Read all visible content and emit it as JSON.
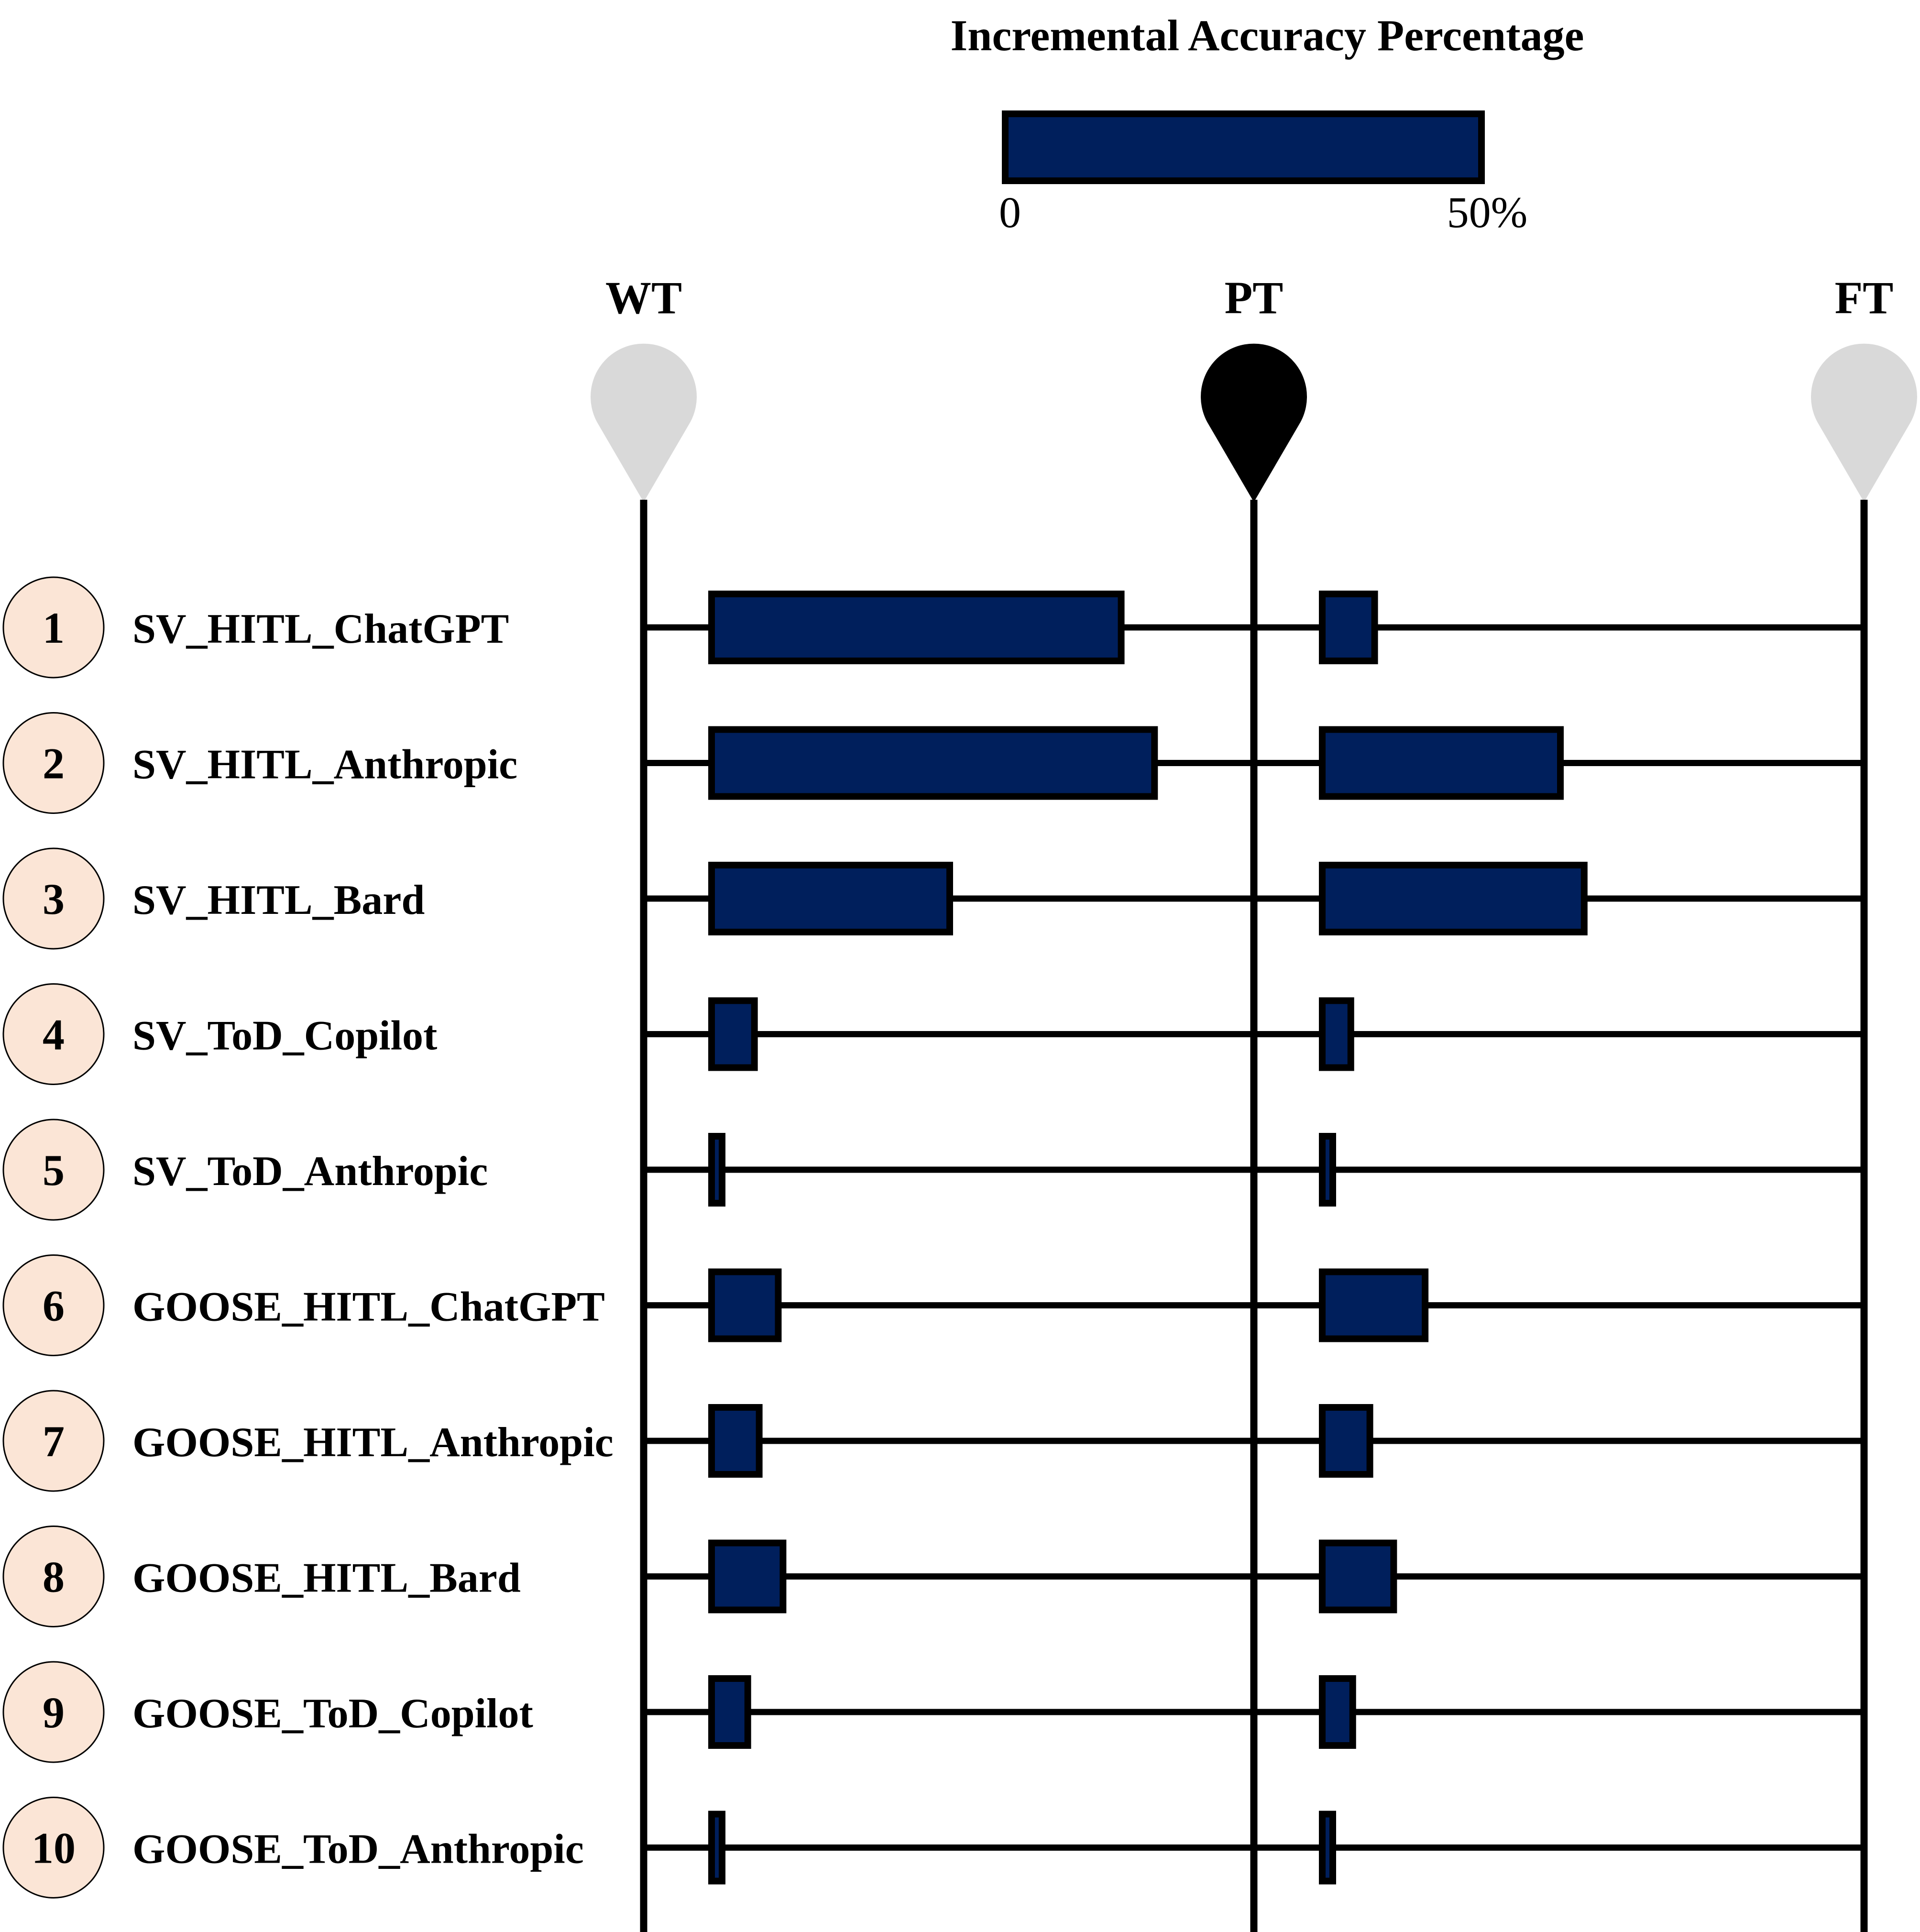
{
  "chart_data": {
    "type": "bar",
    "title": "Incremental Accuracy Percentage",
    "scale_legend": {
      "min_label": "0",
      "max_label": "50%",
      "min": 0,
      "max": 50
    },
    "stages": [
      "WT",
      "PT",
      "FT"
    ],
    "stage_colors": {
      "WT": "#d9d9d9",
      "PT": "#000000",
      "FT": "#d9d9d9"
    },
    "bar_color": "#001f5c",
    "circle_color": "#fbe5d6",
    "rows": [
      {
        "number": "1",
        "name": "SV_HITL_ChatGPT",
        "wt_pt": 43.0,
        "pt_ft": 5.5
      },
      {
        "number": "2",
        "name": "SV_HITL_Anthropic",
        "wt_pt": 46.5,
        "pt_ft": 25.0
      },
      {
        "number": "3",
        "name": "SV_HITL_Bard",
        "wt_pt": 25.0,
        "pt_ft": 27.5
      },
      {
        "number": "4",
        "name": "SV_ToD_Copilot",
        "wt_pt": 4.5,
        "pt_ft": 3.0
      },
      {
        "number": "5",
        "name": "SV_ToD_Anthropic",
        "wt_pt": 1.0,
        "pt_ft": 0.8
      },
      {
        "number": "6",
        "name": "GOOSE_HITL_ChatGPT",
        "wt_pt": 7.0,
        "pt_ft": 10.8
      },
      {
        "number": "7",
        "name": "GOOSE_HITL_Anthropic",
        "wt_pt": 5.0,
        "pt_ft": 5.0
      },
      {
        "number": "8",
        "name": "GOOSE_HITL_Bard",
        "wt_pt": 7.5,
        "pt_ft": 7.5
      },
      {
        "number": "9",
        "name": "GOOSE_ToD_Copilot",
        "wt_pt": 3.8,
        "pt_ft": 3.2
      },
      {
        "number": "10",
        "name": "GOOSE_ToD_Anthropic",
        "wt_pt": 1.0,
        "pt_ft": 0.8
      }
    ]
  }
}
